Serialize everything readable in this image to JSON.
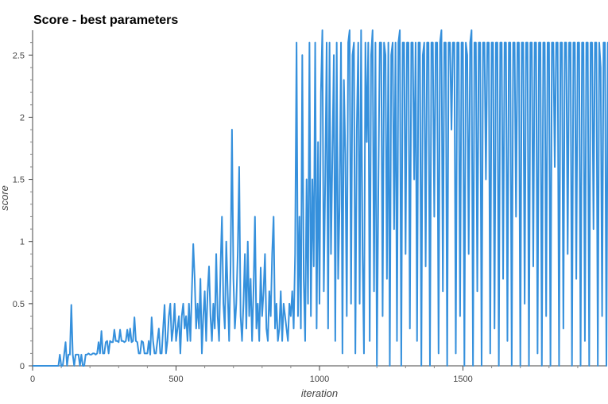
{
  "chart_data": {
    "type": "line",
    "title": "Score - best parameters",
    "xlabel": "iteration",
    "ylabel": "score",
    "xlim": [
      0,
      2000
    ],
    "ylim": [
      0,
      2.7
    ],
    "x_ticks": [
      0,
      500,
      1000,
      1500
    ],
    "x_tick_labels": [
      "0",
      "500",
      "1000",
      "1500"
    ],
    "y_ticks": [
      0,
      0.5,
      1,
      1.5,
      2,
      2.5
    ],
    "y_tick_labels": [
      "0",
      "0.5",
      "1",
      "1.5",
      "2",
      "2.5"
    ],
    "grid": false,
    "legend": "none",
    "series": [
      {
        "color": "#3590dc",
        "x_start": 0,
        "x_step": 5,
        "values": [
          0,
          0,
          0,
          0,
          0,
          0,
          0,
          0,
          0,
          0,
          0,
          0,
          0,
          0,
          0,
          0,
          0,
          0,
          0,
          0.09,
          0,
          0,
          0.09,
          0.19,
          0,
          0.09,
          0.09,
          0.49,
          0.09,
          0,
          0.09,
          0.09,
          0.09,
          0,
          0.09,
          0,
          0,
          0.09,
          0.09,
          0.1,
          0.09,
          0.09,
          0.1,
          0.1,
          0.09,
          0.1,
          0.19,
          0.1,
          0.28,
          0.1,
          0.1,
          0.19,
          0.2,
          0.1,
          0.2,
          0.19,
          0.19,
          0.29,
          0.2,
          0.2,
          0.19,
          0.29,
          0.2,
          0.2,
          0.19,
          0.2,
          0.29,
          0.2,
          0.3,
          0.19,
          0.2,
          0.39,
          0.2,
          0.19,
          0.1,
          0.1,
          0.2,
          0.19,
          0.1,
          0.1,
          0.1,
          0.2,
          0.09,
          0.39,
          0.2,
          0.1,
          0.1,
          0.2,
          0.3,
          0.1,
          0.1,
          0.3,
          0.49,
          0.1,
          0.2,
          0.4,
          0.5,
          0.2,
          0.3,
          0.5,
          0.2,
          0.3,
          0.4,
          0.1,
          0.4,
          0.5,
          0.3,
          0.4,
          0.2,
          0.5,
          0.2,
          0.59,
          0.98,
          0.7,
          0.3,
          0.5,
          0.3,
          0.7,
          0.1,
          0.4,
          0.6,
          0.2,
          0.59,
          0.8,
          0.4,
          0.2,
          0.5,
          0.3,
          0.9,
          0.4,
          0.2,
          0.79,
          1.2,
          0.5,
          0.3,
          1.0,
          0.6,
          0.2,
          0.8,
          1.9,
          0.7,
          0.3,
          0.5,
          0.9,
          1.6,
          0.4,
          0.2,
          0.5,
          0.9,
          0.3,
          1.0,
          0.4,
          0.7,
          0.2,
          0.6,
          1.2,
          0.3,
          0.5,
          0.2,
          0.79,
          0.4,
          0.6,
          0.9,
          0.3,
          0.2,
          0.6,
          0.4,
          0.9,
          1.2,
          0.3,
          0.5,
          0.2,
          0.3,
          0.6,
          0.2,
          0.5,
          0.4,
          0.3,
          0.2,
          0.5,
          0.4,
          0.6,
          0.3,
          0.9,
          2.6,
          0.4,
          1.2,
          0.3,
          2.5,
          0.7,
          0.2,
          1.5,
          0.5,
          2.6,
          0.4,
          1.5,
          0.8,
          2.6,
          0.3,
          1.8,
          0.5,
          2.2,
          2.7,
          0.6,
          1.5,
          2.6,
          0.3,
          2.6,
          0.9,
          1.7,
          2.5,
          0.2,
          2.6,
          0.7,
          1.3,
          2.6,
          0.1,
          2.3,
          1.7,
          0.4,
          2.6,
          2.7,
          0.5,
          2.5,
          2.6,
          0.1,
          1.9,
          2.6,
          0.5,
          2.7,
          0.9,
          0.1,
          2.6,
          1.8,
          2.6,
          0.2,
          2.5,
          2.7,
          0.6,
          2.6,
          0,
          1.4,
          2.6,
          2.6,
          0.4,
          2.6,
          2.5,
          0.7,
          2.6,
          0,
          2.5,
          2.6,
          1.1,
          2.6,
          0.2,
          2.6,
          2.7,
          0,
          2.6,
          2.6,
          0.9,
          2.6,
          2.6,
          0.3,
          2.6,
          2.6,
          1.5,
          2.6,
          0.2,
          2.6,
          2.6,
          0,
          2.5,
          2.6,
          0.8,
          2.6,
          2.6,
          0,
          2.6,
          2.6,
          1.2,
          2.6,
          2.6,
          0.1,
          2.6,
          2.7,
          0.6,
          2.6,
          2.6,
          0,
          2.6,
          2.6,
          1.9,
          2.6,
          2.6,
          0.1,
          2.6,
          2.6,
          0.4,
          2.6,
          2.6,
          0,
          2.6,
          2.5,
          0.9,
          2.6,
          2.7,
          0,
          2.6,
          2.6,
          0.6,
          2.6,
          2.6,
          0,
          2.6,
          2.6,
          1.5,
          2.6,
          2.6,
          0.1,
          2.6,
          2.6,
          0.3,
          2.6,
          2.6,
          0,
          2.6,
          2.6,
          0.7,
          2.6,
          2.6,
          0.2,
          2.6,
          2.6,
          0,
          2.6,
          2.6,
          1.2,
          2.6,
          2.6,
          0,
          2.6,
          2.6,
          0.5,
          2.6,
          2.6,
          0,
          2.6,
          2.6,
          0.8,
          2.6,
          2.6,
          0.1,
          2.6,
          2.6,
          0,
          2.6,
          2.6,
          0.4,
          2.6,
          2.6,
          0,
          2.6,
          2.6,
          1.6,
          2.6,
          2.6,
          0,
          2.6,
          2.6,
          0.3,
          2.6,
          2.6,
          0.9,
          2.6,
          2.6,
          0,
          2.6,
          2.6,
          0.7,
          2.6,
          2.6,
          0,
          2.6,
          2.6,
          0.2,
          2.6,
          2.6,
          0,
          2.6,
          2.6,
          1.1,
          2.6,
          2.6,
          0,
          2.6,
          2.4,
          0.4,
          2.6,
          2.6,
          0,
          2.6,
          2.6,
          0.3,
          2.4,
          1.9,
          2.5,
          2.3
        ]
      }
    ]
  }
}
